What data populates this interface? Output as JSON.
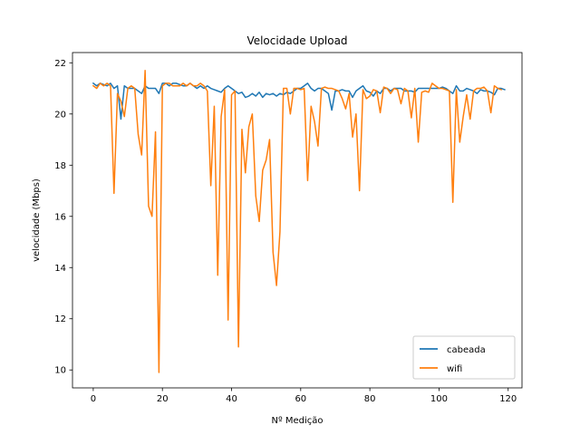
{
  "chart_data": {
    "type": "line",
    "title": "Velocidade Upload",
    "xlabel": "Nº Medição",
    "ylabel": "velocidade (Mbps)",
    "xlim": [
      -6,
      124
    ],
    "ylim": [
      9.3,
      22.4
    ],
    "xticks": [
      0,
      20,
      40,
      60,
      80,
      100,
      120
    ],
    "yticks": [
      10,
      12,
      14,
      16,
      18,
      20,
      22
    ],
    "grid": false,
    "legend_position": "lower-right",
    "series": [
      {
        "name": "cabeada",
        "color": "#1f77b4",
        "values": [
          21.2,
          21.1,
          21.2,
          21.15,
          21.1,
          21.2,
          21.0,
          21.1,
          19.8,
          21.1,
          21.0,
          21.0,
          21.0,
          20.9,
          20.8,
          21.1,
          21.0,
          21.0,
          21.0,
          20.8,
          21.2,
          21.2,
          21.1,
          21.2,
          21.2,
          21.15,
          21.1,
          21.1,
          21.2,
          21.1,
          21.0,
          21.1,
          21.0,
          21.1,
          21.0,
          20.95,
          20.9,
          20.85,
          21.0,
          21.1,
          21.0,
          20.9,
          20.8,
          20.85,
          20.65,
          20.7,
          20.8,
          20.7,
          20.85,
          20.65,
          20.8,
          20.75,
          20.8,
          20.7,
          20.8,
          20.75,
          20.85,
          20.8,
          20.9,
          21.0,
          21.0,
          21.1,
          21.2,
          21.0,
          20.9,
          21.0,
          21.0,
          20.9,
          20.8,
          20.15,
          20.9,
          20.9,
          20.95,
          20.9,
          20.9,
          20.65,
          20.9,
          21.0,
          21.1,
          20.9,
          20.85,
          20.7,
          20.9,
          20.8,
          21.0,
          21.0,
          20.9,
          21.0,
          21.0,
          21.0,
          20.9,
          20.9,
          20.9,
          20.85,
          21.0,
          21.0,
          21.0,
          21.0,
          21.0,
          21.0,
          21.0,
          21.05,
          21.0,
          20.9,
          20.8,
          21.1,
          20.9,
          20.9,
          21.0,
          20.95,
          20.9,
          20.8,
          20.95,
          20.9,
          20.9,
          20.85,
          20.75,
          21.0,
          21.0,
          20.95
        ]
      },
      {
        "name": "wifi",
        "color": "#ff7f0e",
        "values": [
          21.1,
          21.0,
          21.2,
          21.1,
          21.2,
          21.1,
          16.9,
          20.8,
          20.5,
          19.9,
          21.0,
          21.1,
          21.0,
          19.2,
          18.4,
          21.7,
          16.4,
          16.0,
          19.3,
          9.9,
          21.1,
          21.2,
          21.2,
          21.1,
          21.1,
          21.1,
          21.2,
          21.1,
          21.2,
          21.1,
          21.1,
          21.2,
          21.1,
          20.9,
          17.2,
          20.3,
          13.7,
          19.9,
          20.95,
          11.95,
          20.75,
          20.9,
          10.9,
          19.4,
          17.7,
          19.5,
          20.0,
          16.8,
          15.8,
          17.8,
          18.2,
          19.0,
          14.6,
          13.3,
          15.4,
          21.0,
          21.0,
          20.0,
          21.0,
          21.0,
          20.95,
          21.0,
          17.4,
          20.3,
          19.7,
          18.75,
          21.0,
          21.05,
          21.0,
          21.0,
          20.95,
          20.9,
          20.6,
          20.2,
          20.8,
          19.1,
          20.0,
          17.0,
          20.95,
          20.6,
          20.7,
          20.95,
          20.9,
          20.05,
          21.05,
          21.0,
          20.8,
          21.0,
          20.95,
          20.4,
          21.0,
          20.9,
          19.85,
          21.0,
          18.9,
          20.85,
          20.9,
          20.85,
          21.2,
          21.1,
          21.0,
          21.0,
          20.95,
          20.9,
          16.55,
          20.95,
          18.9,
          19.9,
          20.75,
          19.8,
          20.9,
          21.0,
          21.0,
          21.05,
          20.9,
          20.05,
          21.1,
          21.0,
          20.95
        ]
      }
    ]
  }
}
